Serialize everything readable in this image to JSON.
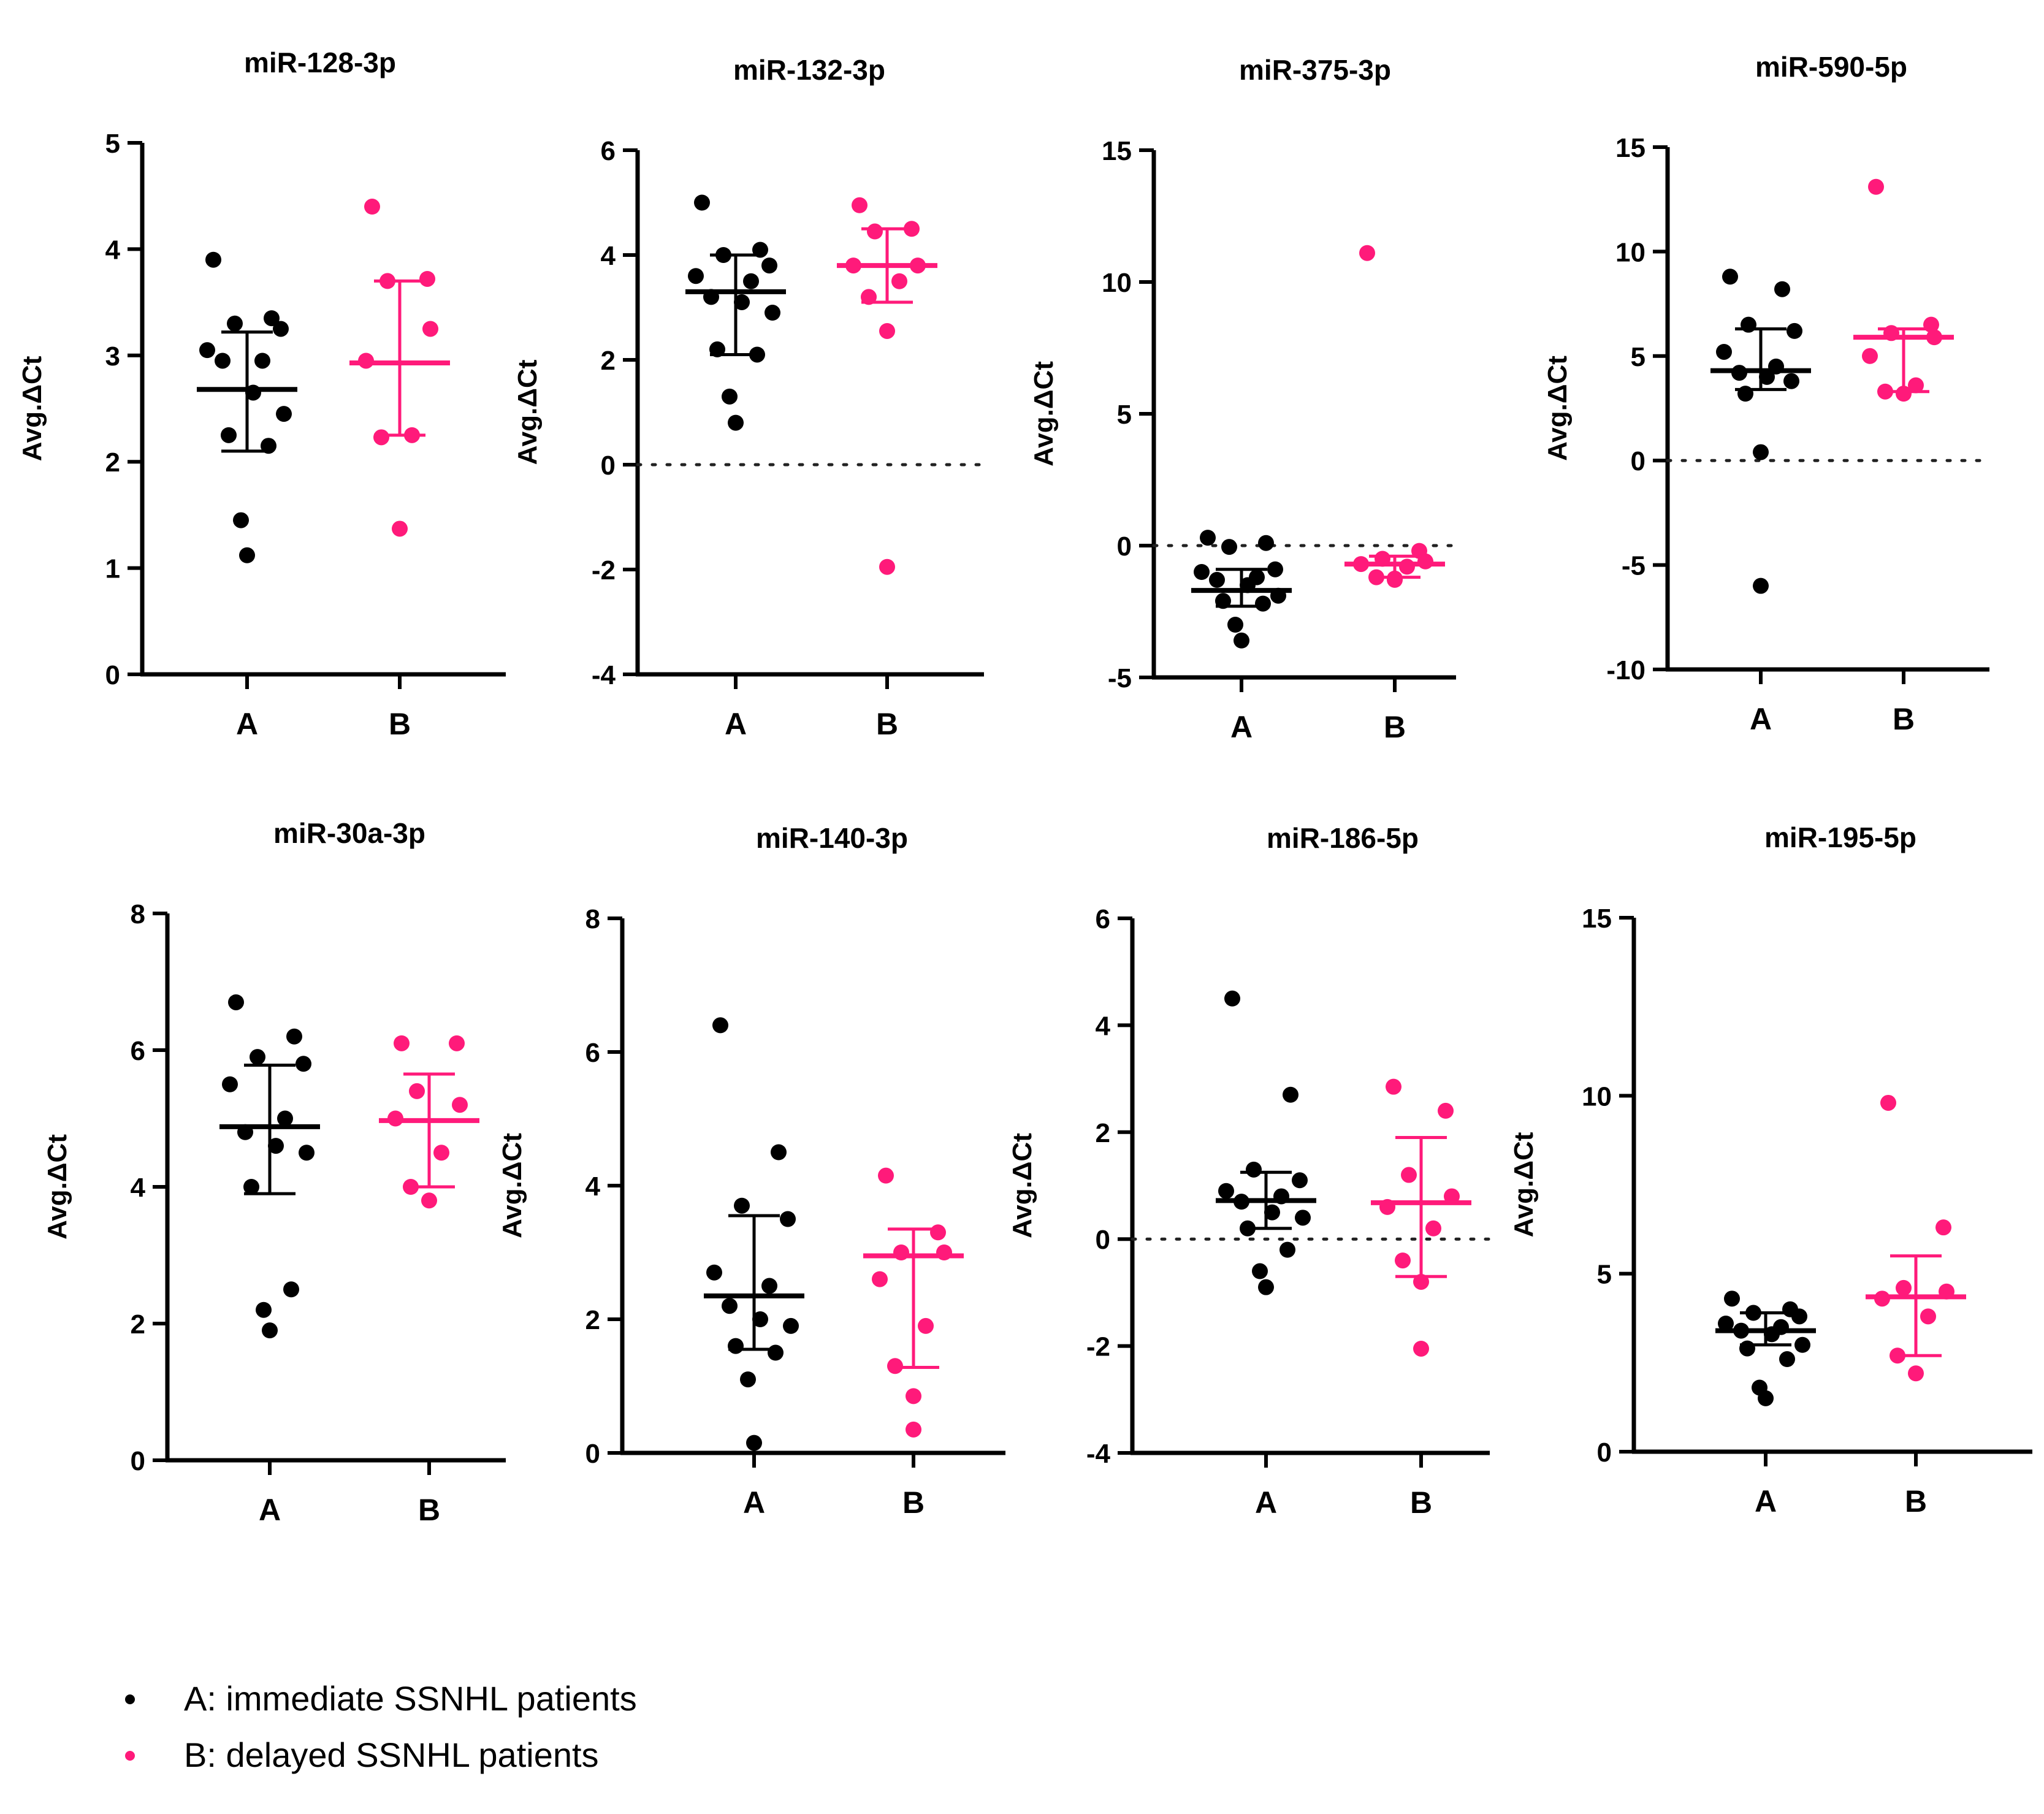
{
  "colors": {
    "A": "#000000",
    "B": "#ff1a7a"
  },
  "legend": [
    {
      "key": "A",
      "label": "A: immediate SSNHL patients"
    },
    {
      "key": "B",
      "label": "B: delayed SSNHL patients"
    }
  ],
  "chart_data": [
    {
      "type": "scatter",
      "title": "miR-128-3p",
      "ylabel": "Avg.ΔCt",
      "categories": [
        "A",
        "B"
      ],
      "ylim": [
        0,
        5
      ],
      "yticks": [
        0,
        1,
        2,
        3,
        4,
        5
      ],
      "zero_line": false,
      "series": [
        {
          "group": "A",
          "values": [
            3.9,
            3.35,
            3.3,
            3.25,
            3.05,
            2.95,
            2.95,
            2.65,
            2.45,
            2.25,
            2.15,
            1.45,
            1.12
          ],
          "center": 2.68,
          "error_low": 2.1,
          "error_high": 3.22
        },
        {
          "group": "B",
          "values": [
            4.4,
            3.72,
            3.7,
            3.25,
            2.95,
            2.25,
            2.23,
            1.37
          ],
          "center": 2.93,
          "error_low": 2.25,
          "error_high": 3.7
        }
      ]
    },
    {
      "type": "scatter",
      "title": "miR-132-3p",
      "ylabel": "Avg.ΔCt",
      "categories": [
        "A",
        "B"
      ],
      "ylim": [
        -4,
        6
      ],
      "yticks": [
        -4,
        -2,
        0,
        2,
        4,
        6
      ],
      "zero_line": true,
      "series": [
        {
          "group": "A",
          "values": [
            5.0,
            4.1,
            4.0,
            3.8,
            3.6,
            3.5,
            3.2,
            3.1,
            2.9,
            2.2,
            2.1,
            1.3,
            0.8
          ],
          "center": 3.3,
          "error_low": 2.1,
          "error_high": 4.0
        },
        {
          "group": "B",
          "values": [
            4.95,
            4.5,
            4.45,
            3.8,
            3.8,
            3.5,
            3.2,
            2.55,
            -1.95
          ],
          "center": 3.8,
          "error_low": 3.1,
          "error_high": 4.5
        }
      ]
    },
    {
      "type": "scatter",
      "title": "miR-375-3p",
      "ylabel": "Avg.ΔCt",
      "categories": [
        "A",
        "B"
      ],
      "ylim": [
        -5,
        15
      ],
      "yticks": [
        -5,
        0,
        5,
        10,
        15
      ],
      "zero_line": true,
      "series": [
        {
          "group": "A",
          "values": [
            0.3,
            0.1,
            -0.05,
            -0.9,
            -1.0,
            -1.2,
            -1.3,
            -1.5,
            -1.9,
            -2.1,
            -2.2,
            -3.0,
            -3.6
          ],
          "center": -1.7,
          "error_low": -2.3,
          "error_high": -0.9
        },
        {
          "group": "B",
          "values": [
            11.1,
            -0.2,
            -0.5,
            -0.6,
            -0.7,
            -0.8,
            -1.2,
            -1.25,
            -1.3
          ],
          "center": -0.7,
          "error_low": -1.2,
          "error_high": -0.4
        }
      ]
    },
    {
      "type": "scatter",
      "title": "miR-590-5p",
      "ylabel": "Avg.ΔCt",
      "categories": [
        "A",
        "B"
      ],
      "ylim": [
        -10,
        15
      ],
      "yticks": [
        -10,
        -5,
        0,
        5,
        10,
        15
      ],
      "zero_line": true,
      "series": [
        {
          "group": "A",
          "values": [
            8.8,
            8.2,
            6.5,
            6.2,
            5.2,
            4.5,
            4.2,
            4.0,
            3.8,
            3.2,
            0.4,
            -6.0
          ],
          "center": 4.3,
          "error_low": 3.4,
          "error_high": 6.3
        },
        {
          "group": "B",
          "values": [
            13.1,
            6.5,
            6.1,
            5.9,
            5.0,
            3.6,
            3.3,
            3.2
          ],
          "center": 5.9,
          "error_low": 3.3,
          "error_high": 6.3
        }
      ]
    },
    {
      "type": "scatter",
      "title": "miR-30a-3p",
      "ylabel": "Avg.ΔCt",
      "categories": [
        "A",
        "B"
      ],
      "ylim": [
        0,
        8
      ],
      "yticks": [
        0,
        2,
        4,
        6,
        8
      ],
      "zero_line": false,
      "series": [
        {
          "group": "A",
          "values": [
            6.7,
            6.2,
            5.9,
            5.8,
            5.5,
            5.0,
            4.8,
            4.6,
            4.5,
            4.0,
            2.5,
            2.2,
            1.9
          ],
          "center": 4.88,
          "error_low": 3.9,
          "error_high": 5.78
        },
        {
          "group": "B",
          "values": [
            6.1,
            6.1,
            5.4,
            5.2,
            5.0,
            4.5,
            4.0,
            3.8
          ],
          "center": 4.97,
          "error_low": 4.0,
          "error_high": 5.65
        }
      ]
    },
    {
      "type": "scatter",
      "title": "miR-140-3p",
      "ylabel": "Avg.ΔCt",
      "categories": [
        "A",
        "B"
      ],
      "ylim": [
        0,
        8
      ],
      "yticks": [
        0,
        2,
        4,
        6,
        8
      ],
      "zero_line": false,
      "series": [
        {
          "group": "A",
          "values": [
            6.4,
            4.5,
            3.7,
            3.5,
            2.7,
            2.5,
            2.2,
            2.0,
            1.9,
            1.6,
            1.5,
            1.1,
            0.15
          ],
          "center": 2.35,
          "error_low": 1.55,
          "error_high": 3.55
        },
        {
          "group": "B",
          "values": [
            4.15,
            3.3,
            3.0,
            3.0,
            2.6,
            1.9,
            1.3,
            0.85,
            0.35
          ],
          "center": 2.95,
          "error_low": 1.28,
          "error_high": 3.35
        }
      ]
    },
    {
      "type": "scatter",
      "title": "miR-186-5p",
      "ylabel": "Avg.ΔCt",
      "categories": [
        "A",
        "B"
      ],
      "ylim": [
        -4,
        6
      ],
      "yticks": [
        -4,
        -2,
        0,
        2,
        4,
        6
      ],
      "zero_line": true,
      "series": [
        {
          "group": "A",
          "values": [
            4.5,
            2.7,
            1.3,
            1.1,
            0.9,
            0.8,
            0.7,
            0.5,
            0.4,
            0.2,
            -0.2,
            -0.6,
            -0.9
          ],
          "center": 0.72,
          "error_low": 0.2,
          "error_high": 1.25
        },
        {
          "group": "B",
          "values": [
            2.85,
            2.4,
            1.2,
            0.8,
            0.6,
            0.2,
            -0.4,
            -0.8,
            -2.05
          ],
          "center": 0.68,
          "error_low": -0.7,
          "error_high": 1.9
        }
      ]
    },
    {
      "type": "scatter",
      "title": "miR-195-5p",
      "ylabel": "Avg.ΔCt",
      "categories": [
        "A",
        "B"
      ],
      "ylim": [
        0,
        15
      ],
      "yticks": [
        0,
        5,
        10,
        15
      ],
      "zero_line": false,
      "series": [
        {
          "group": "A",
          "values": [
            4.3,
            4.0,
            3.9,
            3.8,
            3.6,
            3.5,
            3.4,
            3.3,
            3.0,
            2.9,
            2.6,
            1.8,
            1.5
          ],
          "center": 3.4,
          "error_low": 3.0,
          "error_high": 3.9
        },
        {
          "group": "B",
          "values": [
            9.8,
            6.3,
            4.6,
            4.5,
            4.3,
            3.8,
            2.7,
            2.2
          ],
          "center": 4.35,
          "error_low": 2.7,
          "error_high": 5.5
        }
      ]
    }
  ]
}
